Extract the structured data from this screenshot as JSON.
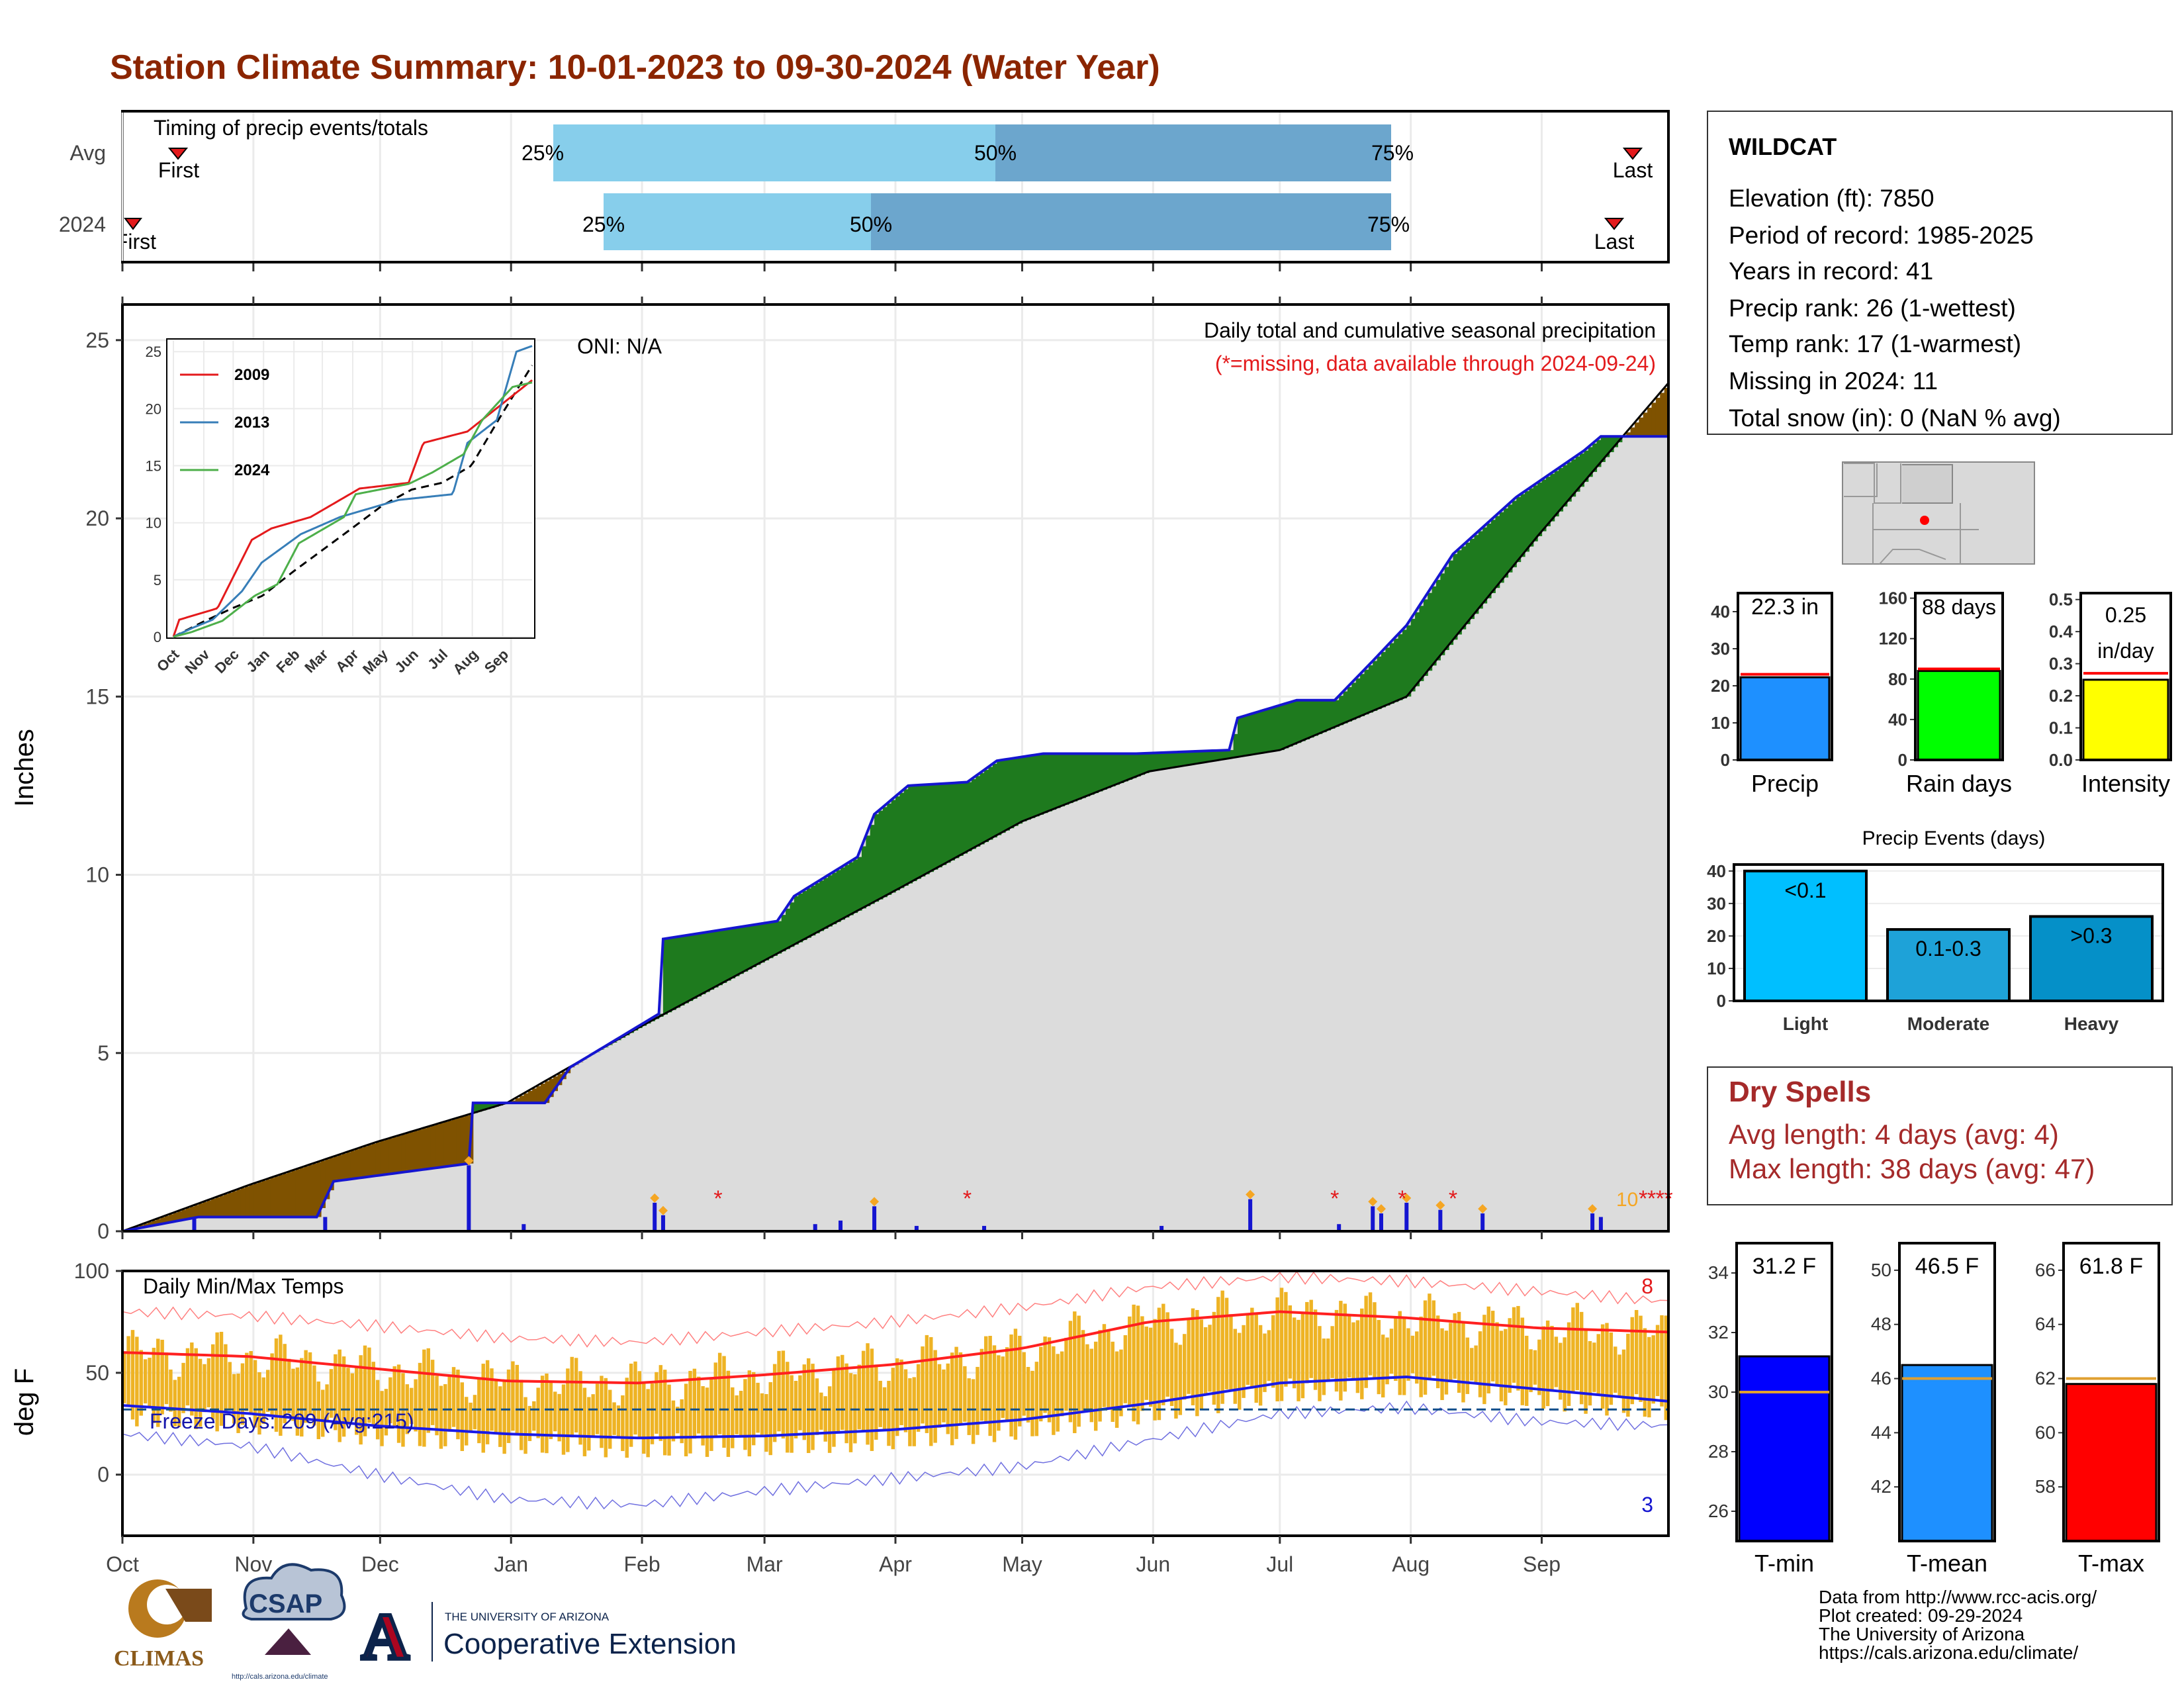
{
  "title": "Station Climate Summary: 10-01-2023 to 09-30-2024 (Water Year)",
  "colors": {
    "title": "#8B2500",
    "precipBrown": "#7F5200",
    "precipGreen": "#1E7A1E",
    "precipBlue": "#1515D0",
    "grey": "#DCDCDC",
    "timingLight": "#87CEEB",
    "timingDark": "#6CA6CD",
    "tempBar": "#EEB324",
    "tmax": "#FF2020",
    "tmin": "#1A1AE6",
    "dryText": "#A52A2A"
  },
  "timing": {
    "label": "Timing of precip events/totals",
    "rows": [
      {
        "name": "Avg",
        "first": "First",
        "last": "Last",
        "p25": "25%",
        "p50": "50%",
        "p75": "75%"
      },
      {
        "name": "2024",
        "first": "First",
        "last": "Last",
        "p25": "25%",
        "p50": "50%",
        "p75": "75%"
      }
    ]
  },
  "chart_data": [
    {
      "type": "area",
      "name": "cumulative precipitation",
      "ylabel": "Inches",
      "yticks": [
        "0",
        "5",
        "10",
        "15",
        "20",
        "25"
      ],
      "ylim": [
        0,
        26
      ],
      "months": [
        "Oct",
        "Nov",
        "Dec",
        "Jan",
        "Feb",
        "Mar",
        "Apr",
        "May",
        "Jun",
        "Jul",
        "Aug",
        "Sep"
      ],
      "header": "Daily total and cumulative seasonal precipitation",
      "note": "(*=missing, data available through 2024-09-24)",
      "oni": "ONI: N/A",
      "missing_count_label": "10",
      "avg_points": [
        [
          0,
          0
        ],
        [
          30,
          1.3
        ],
        [
          60,
          2.5
        ],
        [
          91,
          3.6
        ],
        [
          122,
          5.7
        ],
        [
          152,
          7.6
        ],
        [
          182,
          9.5
        ],
        [
          213,
          11.5
        ],
        [
          243,
          12.9
        ],
        [
          274,
          13.5
        ],
        [
          304,
          15.0
        ],
        [
          335,
          19.5
        ],
        [
          366,
          23.8
        ]
      ],
      "y2024_points": [
        [
          0,
          0
        ],
        [
          18,
          0.4
        ],
        [
          46,
          0.4
        ],
        [
          50,
          1.4
        ],
        [
          82,
          1.9
        ],
        [
          83,
          3.6
        ],
        [
          100,
          3.6
        ],
        [
          106,
          4.6
        ],
        [
          127,
          6.1
        ],
        [
          128,
          8.2
        ],
        [
          155,
          8.7
        ],
        [
          159,
          9.4
        ],
        [
          174,
          10.5
        ],
        [
          178,
          11.7
        ],
        [
          186,
          12.5
        ],
        [
          200,
          12.6
        ],
        [
          207,
          13.2
        ],
        [
          218,
          13.4
        ],
        [
          240,
          13.4
        ],
        [
          262,
          13.5
        ],
        [
          264,
          14.4
        ],
        [
          278,
          14.9
        ],
        [
          287,
          14.9
        ],
        [
          296,
          16.0
        ],
        [
          304,
          17.0
        ],
        [
          315,
          19.0
        ],
        [
          330,
          20.6
        ],
        [
          346,
          21.9
        ],
        [
          350,
          22.3
        ],
        [
          366,
          22.3
        ]
      ],
      "daily_precip": [
        [
          17,
          0.35
        ],
        [
          48,
          0.4
        ],
        [
          82,
          1.85
        ],
        [
          95,
          0.2
        ],
        [
          126,
          0.8
        ],
        [
          128,
          0.45
        ],
        [
          164,
          0.2
        ],
        [
          170,
          0.3
        ],
        [
          178,
          0.7
        ],
        [
          188,
          0.15
        ],
        [
          204,
          0.15
        ],
        [
          246,
          0.15
        ],
        [
          267,
          0.9
        ],
        [
          288,
          0.2
        ],
        [
          296,
          0.7
        ],
        [
          298,
          0.5
        ],
        [
          304,
          0.8
        ],
        [
          312,
          0.6
        ],
        [
          322,
          0.5
        ],
        [
          348,
          0.5
        ],
        [
          350,
          0.4
        ]
      ],
      "missing_days": [
        141,
        200,
        287,
        303,
        315,
        360,
        362,
        364,
        366
      ],
      "inset": {
        "type": "line",
        "xticks": [
          "Oct",
          "Nov",
          "Dec",
          "Jan",
          "Feb",
          "Mar",
          "Apr",
          "May",
          "Jun",
          "Jul",
          "Aug",
          "Sep"
        ],
        "yticks": [
          "0",
          "5",
          "10",
          "15",
          "20",
          "25"
        ],
        "ylim": [
          0,
          26
        ],
        "series": [
          {
            "name": "2009",
            "color": "#E41A1C",
            "points": [
              [
                0,
                0
              ],
              [
                6,
                1.5
              ],
              [
                45,
                2.5
              ],
              [
                80,
                8.5
              ],
              [
                100,
                9.5
              ],
              [
                140,
                10.5
              ],
              [
                190,
                13
              ],
              [
                240,
                13.5
              ],
              [
                255,
                17
              ],
              [
                300,
                18
              ],
              [
                366,
                22.5
              ]
            ]
          },
          {
            "name": "2013",
            "color": "#377EB8",
            "points": [
              [
                0,
                0
              ],
              [
                20,
                0.8
              ],
              [
                40,
                1.5
              ],
              [
                70,
                4
              ],
              [
                90,
                6.5
              ],
              [
                130,
                9
              ],
              [
                170,
                10.5
              ],
              [
                230,
                12
              ],
              [
                285,
                12.5
              ],
              [
                300,
                17
              ],
              [
                330,
                19
              ],
              [
                350,
                25
              ],
              [
                366,
                25.5
              ]
            ]
          },
          {
            "name": "2024",
            "color": "#4DAF4A",
            "points": [
              [
                0,
                0
              ],
              [
                18,
                0.4
              ],
              [
                50,
                1.4
              ],
              [
                83,
                3.6
              ],
              [
                106,
                4.6
              ],
              [
                128,
                8.2
              ],
              [
                174,
                10.5
              ],
              [
                186,
                12.5
              ],
              [
                240,
                13.4
              ],
              [
                264,
                14.4
              ],
              [
                296,
                16.0
              ],
              [
                315,
                19.0
              ],
              [
                346,
                21.9
              ],
              [
                366,
                22.3
              ]
            ]
          }
        ]
      }
    },
    {
      "type": "line",
      "name": "daily min/max temps",
      "ylabel": "deg F",
      "label": "Daily Min/Max Temps",
      "yticks": [
        "0",
        "50",
        "100"
      ],
      "ylim": [
        -30,
        100
      ],
      "freeze_text": "Freeze Days: 209 (Avg:215)",
      "freeze_line": 32,
      "count_max": "8",
      "count_min": "3",
      "tmax_avg": [
        [
          0,
          60
        ],
        [
          30,
          58
        ],
        [
          60,
          52
        ],
        [
          91,
          46
        ],
        [
          122,
          45
        ],
        [
          152,
          49
        ],
        [
          182,
          54
        ],
        [
          213,
          62
        ],
        [
          243,
          75
        ],
        [
          274,
          80
        ],
        [
          304,
          77
        ],
        [
          335,
          72
        ],
        [
          366,
          70
        ]
      ],
      "tmin_avg": [
        [
          0,
          34
        ],
        [
          30,
          30
        ],
        [
          60,
          24
        ],
        [
          91,
          20
        ],
        [
          122,
          18
        ],
        [
          152,
          19
        ],
        [
          182,
          22
        ],
        [
          213,
          27
        ],
        [
          243,
          35
        ],
        [
          274,
          45
        ],
        [
          304,
          48
        ],
        [
          335,
          42
        ],
        [
          366,
          36
        ]
      ],
      "tmax_extreme": [
        [
          0,
          80
        ],
        [
          30,
          78
        ],
        [
          60,
          73
        ],
        [
          91,
          67
        ],
        [
          122,
          65
        ],
        [
          152,
          70
        ],
        [
          182,
          75
        ],
        [
          213,
          82
        ],
        [
          243,
          92
        ],
        [
          274,
          97
        ],
        [
          304,
          95
        ],
        [
          335,
          90
        ],
        [
          366,
          85
        ]
      ],
      "tmin_extreme": [
        [
          0,
          20
        ],
        [
          30,
          14
        ],
        [
          60,
          0
        ],
        [
          91,
          -12
        ],
        [
          122,
          -15
        ],
        [
          152,
          -8
        ],
        [
          182,
          -2
        ],
        [
          213,
          4
        ],
        [
          243,
          17
        ],
        [
          274,
          30
        ],
        [
          304,
          33
        ],
        [
          335,
          26
        ],
        [
          366,
          24
        ]
      ]
    },
    {
      "type": "bar",
      "name": "season totals",
      "panels": [
        {
          "label": "Precip",
          "value_text": "22.3 in",
          "value": 22.3,
          "avg": 23.1,
          "ylim": [
            0,
            45
          ],
          "yticks": [
            "0",
            "10",
            "20",
            "30",
            "40"
          ],
          "color": "#1E90FF"
        },
        {
          "label": "Rain days",
          "value_text": "88 days",
          "value": 88,
          "avg": 90,
          "ylim": [
            0,
            165
          ],
          "yticks": [
            "0",
            "40",
            "80",
            "120",
            "160"
          ],
          "color": "#00FF00"
        },
        {
          "label": "Intensity",
          "value_text": "0.25 in/day",
          "value": 0.25,
          "avg": 0.27,
          "ylim": [
            0,
            0.52
          ],
          "yticks": [
            "0.0",
            "0.1",
            "0.2",
            "0.3",
            "0.4",
            "0.5"
          ],
          "color": "#FFFF00"
        }
      ]
    },
    {
      "type": "bar",
      "title": "Precip Events (days)",
      "categories": [
        "Light",
        "Moderate",
        "Heavy"
      ],
      "bar_labels": [
        "<0.1",
        "0.1-0.3",
        ">0.3"
      ],
      "values": [
        40,
        22,
        26
      ],
      "ylim": [
        0,
        42
      ],
      "yticks": [
        "0",
        "10",
        "20",
        "30",
        "40"
      ],
      "colors": [
        "#00BFFF",
        "#1EA2D8",
        "#0590C8"
      ]
    },
    {
      "type": "bar",
      "name": "temperature means",
      "panels": [
        {
          "label": "T-min",
          "value_text": "31.2 F",
          "value": 31.2,
          "avg": 30.0,
          "ylim": [
            25,
            35
          ],
          "yticks": [
            "26",
            "28",
            "30",
            "32",
            "34"
          ],
          "color": "#0000FF"
        },
        {
          "label": "T-mean",
          "value_text": "46.5 F",
          "value": 46.5,
          "avg": 46.0,
          "ylim": [
            40,
            51
          ],
          "yticks": [
            "42",
            "44",
            "46",
            "48",
            "50"
          ],
          "color": "#1E90FF"
        },
        {
          "label": "T-max",
          "value_text": "61.8 F",
          "value": 61.8,
          "avg": 62.0,
          "ylim": [
            56,
            67
          ],
          "yticks": [
            "58",
            "60",
            "62",
            "64",
            "66"
          ],
          "color": "#FF0000"
        }
      ]
    }
  ],
  "station": {
    "name": "WILDCAT",
    "lines": [
      "Elevation (ft): 7850",
      "Period of record: 1985-2025",
      "Years in record: 41",
      "Precip rank: 26 (1-wettest)",
      "Temp rank: 17 (1-warmest)",
      "Missing in 2024: 11",
      "Total snow (in): 0 (NaN % avg)"
    ]
  },
  "dry_spells": {
    "title": "Dry Spells",
    "avg": "Avg length: 4 days (avg: 4)",
    "max": "Max length: 38 days (avg: 47)"
  },
  "footer": {
    "lines": [
      "Data from http://www.rcc-acis.org/",
      "Plot created: 09-29-2024",
      "The University of Arizona",
      "https://cals.arizona.edu/climate/"
    ]
  },
  "logos": {
    "climas": "CLIMAS",
    "csap": "CSAP",
    "csap_url": "http://cals.arizona.edu/climate",
    "ua_small": "THE UNIVERSITY OF ARIZONA",
    "ua_big": "Cooperative Extension",
    "ua_letter": "A"
  }
}
